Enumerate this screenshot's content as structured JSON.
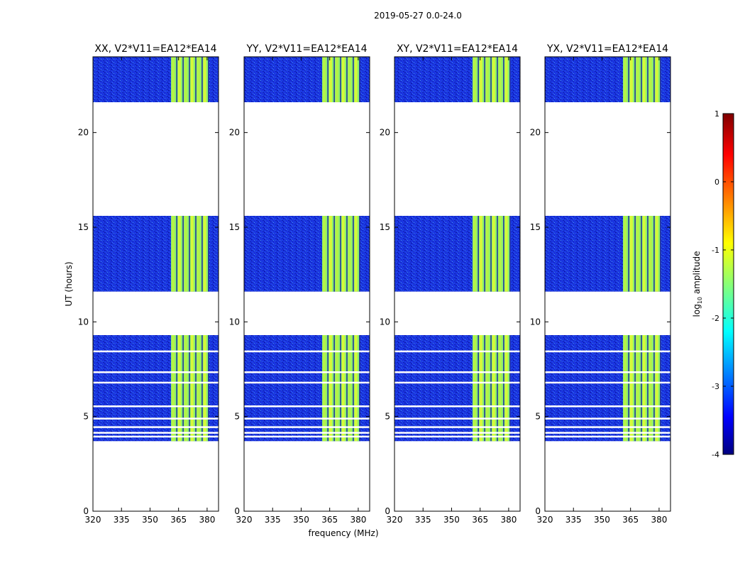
{
  "chart_data": {
    "type": "heatmap",
    "title": "2019-05-27 0.0-24.0",
    "ylabel": "UT (hours)",
    "xlabel": "frequency (MHz)",
    "xlim": [
      320,
      386
    ],
    "ylim": [
      0,
      24
    ],
    "x_ticks": [
      320,
      335,
      350,
      365,
      380
    ],
    "y_ticks": [
      0,
      5,
      10,
      15,
      20
    ],
    "panels": [
      {
        "title": "XX, V2*V11=EA12*EA14"
      },
      {
        "title": "YY, V2*V11=EA12*EA14"
      },
      {
        "title": "XY, V2*V11=EA12*EA14"
      },
      {
        "title": "YX, V2*V11=EA12*EA14"
      }
    ],
    "data_blocks_hours": [
      [
        3.7,
        9.3
      ],
      [
        11.6,
        15.6
      ],
      [
        21.6,
        24.0
      ]
    ],
    "flagged_gaps_hours": [
      3.95,
      4.15,
      4.45,
      4.9,
      5.55,
      6.8,
      7.35,
      8.45
    ],
    "high_band_mhz": [
      361,
      381
    ],
    "colorbar": {
      "label": "log",
      "label_sub": "10",
      "label_rest": " amplitude",
      "ticks": [
        1,
        0,
        -1,
        -2,
        -3,
        -4
      ],
      "vmin": -4,
      "vmax": 1
    }
  }
}
